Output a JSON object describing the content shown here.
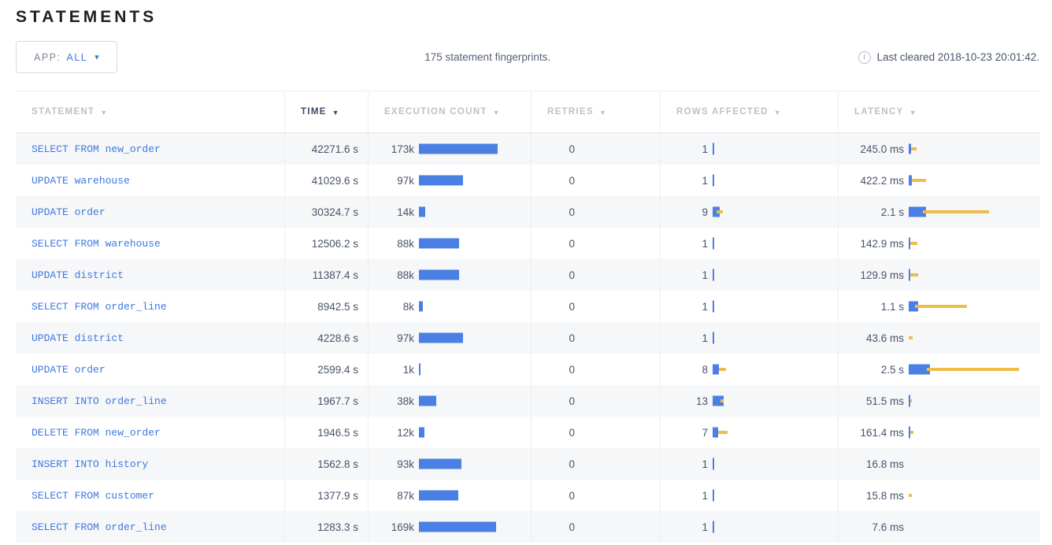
{
  "page": {
    "title": "STATEMENTS",
    "app_filter": {
      "label": "APP:",
      "value": "ALL"
    },
    "summary": "175 statement fingerprints.",
    "last_cleared": "Last cleared 2018-10-23 20:01:42."
  },
  "icons": {
    "dropdown_arrow": "▾",
    "sort_arrow": "▼",
    "info": "i"
  },
  "colors": {
    "bar_blue": "#4a80e4",
    "bar_dev_yellow": "#eebc49",
    "link_blue": "#3e79e0"
  },
  "table": {
    "columns": [
      {
        "label": "STATEMENT",
        "sorted": false
      },
      {
        "label": "TIME",
        "sorted": true
      },
      {
        "label": "EXECUTION COUNT",
        "sorted": false
      },
      {
        "label": "RETRIES",
        "sorted": false
      },
      {
        "label": "ROWS AFFECTED",
        "sorted": false
      },
      {
        "label": "LATENCY",
        "sorted": false
      }
    ],
    "rows": [
      {
        "statement": "SELECT FROM new_order",
        "time": "42271.6 s",
        "exec": {
          "label": "173k",
          "bar": 100,
          "dev": 0
        },
        "retries": "0",
        "rows_affected": {
          "label": "1",
          "bar": 1.5,
          "dev": 0
        },
        "latency": {
          "label": "245.0 ms",
          "bar": 3,
          "dev": 7
        }
      },
      {
        "statement": "UPDATE warehouse",
        "time": "41029.6 s",
        "exec": {
          "label": "97k",
          "bar": 56,
          "dev": 0
        },
        "retries": "0",
        "rows_affected": {
          "label": "1",
          "bar": 1.5,
          "dev": 0
        },
        "latency": {
          "label": "422.2 ms",
          "bar": 4,
          "dev": 18
        }
      },
      {
        "statement": "UPDATE order",
        "time": "30324.7 s",
        "exec": {
          "label": "14k",
          "bar": 8,
          "dev": 0
        },
        "retries": "0",
        "rows_affected": {
          "label": "9",
          "bar": 9,
          "dev": 8
        },
        "latency": {
          "label": "2.1 s",
          "bar": 22,
          "dev": 84
        }
      },
      {
        "statement": "SELECT FROM warehouse",
        "time": "12506.2 s",
        "exec": {
          "label": "88k",
          "bar": 51,
          "dev": 0
        },
        "retries": "0",
        "rows_affected": {
          "label": "1",
          "bar": 1.5,
          "dev": 0
        },
        "latency": {
          "label": "142.9 ms",
          "bar": 2,
          "dev": 9
        }
      },
      {
        "statement": "UPDATE district",
        "time": "11387.4 s",
        "exec": {
          "label": "88k",
          "bar": 51,
          "dev": 0
        },
        "retries": "0",
        "rows_affected": {
          "label": "1",
          "bar": 1.5,
          "dev": 0
        },
        "latency": {
          "label": "129.9 ms",
          "bar": 1.5,
          "dev": 10
        }
      },
      {
        "statement": "SELECT FROM order_line",
        "time": "8942.5 s",
        "exec": {
          "label": "8k",
          "bar": 5,
          "dev": 0
        },
        "retries": "0",
        "rows_affected": {
          "label": "1",
          "bar": 1.5,
          "dev": 0
        },
        "latency": {
          "label": "1.1 s",
          "bar": 12,
          "dev": 66
        }
      },
      {
        "statement": "UPDATE district",
        "time": "4228.6 s",
        "exec": {
          "label": "97k",
          "bar": 56,
          "dev": 0
        },
        "retries": "0",
        "rows_affected": {
          "label": "1",
          "bar": 1.5,
          "dev": 0
        },
        "latency": {
          "label": "43.6 ms",
          "bar": 0,
          "dev": 5
        }
      },
      {
        "statement": "UPDATE order",
        "time": "2599.4 s",
        "exec": {
          "label": "1k",
          "bar": 1.5,
          "dev": 0
        },
        "retries": "0",
        "rows_affected": {
          "label": "8",
          "bar": 8,
          "dev": 9
        },
        "latency": {
          "label": "2.5 s",
          "bar": 27,
          "dev": 117
        }
      },
      {
        "statement": "INSERT INTO order_line",
        "time": "1967.7 s",
        "exec": {
          "label": "38k",
          "bar": 22,
          "dev": 0
        },
        "retries": "0",
        "rows_affected": {
          "label": "13",
          "bar": 14,
          "dev": 4
        },
        "latency": {
          "label": "51.5 ms",
          "bar": 1.5,
          "dev": 2
        }
      },
      {
        "statement": "DELETE FROM new_order",
        "time": "1946.5 s",
        "exec": {
          "label": "12k",
          "bar": 7,
          "dev": 0
        },
        "retries": "0",
        "rows_affected": {
          "label": "7",
          "bar": 7,
          "dev": 12
        },
        "latency": {
          "label": "161.4 ms",
          "bar": 2,
          "dev": 4
        }
      },
      {
        "statement": "INSERT INTO history",
        "time": "1562.8 s",
        "exec": {
          "label": "93k",
          "bar": 54,
          "dev": 0
        },
        "retries": "0",
        "rows_affected": {
          "label": "1",
          "bar": 1.5,
          "dev": 0
        },
        "latency": {
          "label": "16.8 ms",
          "bar": 0,
          "dev": 0
        }
      },
      {
        "statement": "SELECT FROM customer",
        "time": "1377.9 s",
        "exec": {
          "label": "87k",
          "bar": 50,
          "dev": 0
        },
        "retries": "0",
        "rows_affected": {
          "label": "1",
          "bar": 1.5,
          "dev": 0
        },
        "latency": {
          "label": "15.8 ms",
          "bar": 0,
          "dev": 4
        }
      },
      {
        "statement": "SELECT FROM order_line",
        "time": "1283.3 s",
        "exec": {
          "label": "169k",
          "bar": 98,
          "dev": 0
        },
        "retries": "0",
        "rows_affected": {
          "label": "1",
          "bar": 1.5,
          "dev": 0
        },
        "latency": {
          "label": "7.6 ms",
          "bar": 0,
          "dev": 0
        }
      }
    ]
  }
}
